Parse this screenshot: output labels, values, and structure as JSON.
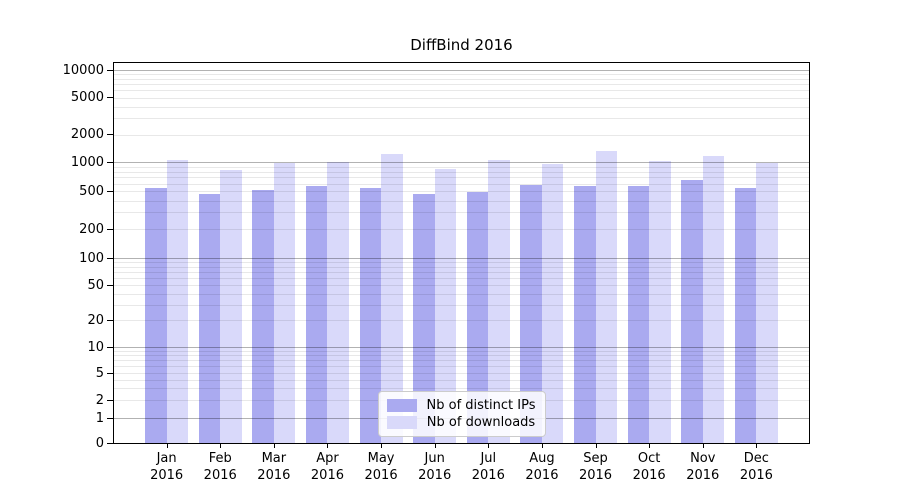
{
  "chart_data": {
    "type": "bar",
    "title": "DiffBind 2016",
    "year_label": "2016",
    "categories": [
      "Jan",
      "Feb",
      "Mar",
      "Apr",
      "May",
      "Jun",
      "Jul",
      "Aug",
      "Sep",
      "Oct",
      "Nov",
      "Dec"
    ],
    "series": [
      {
        "name": "Nb of distinct IPs",
        "color": "#aaaaf0",
        "values": [
          545,
          465,
          515,
          570,
          535,
          465,
          495,
          580,
          560,
          565,
          655,
          535
        ]
      },
      {
        "name": "Nb of downloads",
        "color": "#d9d9fa",
        "values": [
          1050,
          830,
          985,
          1020,
          1220,
          860,
          1060,
          955,
          1330,
          1025,
          1170,
          980
        ]
      }
    ],
    "yscale": "symlog",
    "y_ticks": [
      0,
      1,
      2,
      5,
      10,
      20,
      50,
      100,
      200,
      500,
      1000,
      2000,
      5000,
      10000
    ],
    "ylim": [
      0,
      12000
    ],
    "xlabel": "",
    "ylabel": "",
    "grid": true,
    "grid_on_top_of_bars": true,
    "legend_position": "lower center",
    "colors": {
      "major_gridline": "rgba(0,0,0,0.30)",
      "minor_gridline": "rgba(0,0,0,0.09)",
      "axis": "#000000",
      "text": "#000000",
      "background": "#ffffff"
    }
  },
  "legend": {
    "items": [
      {
        "label": "Nb of distinct IPs",
        "color": "#aaaaf0"
      },
      {
        "label": "Nb of downloads",
        "color": "#d9d9fa"
      }
    ]
  }
}
